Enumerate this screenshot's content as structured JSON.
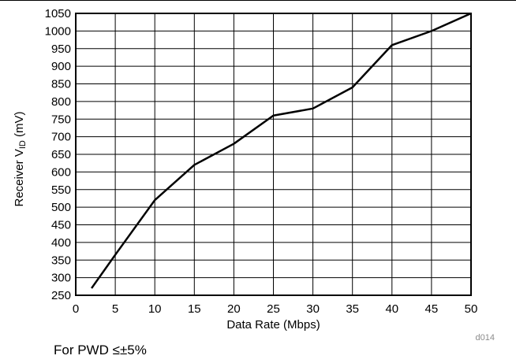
{
  "chart_data": {
    "type": "line",
    "title": "",
    "xlabel": "Data Rate (Mbps)",
    "ylabel_main": "Receiver V",
    "ylabel_sub": "ID",
    "ylabel_unit": " (mV)",
    "xlim": [
      0,
      50
    ],
    "ylim": [
      250,
      1050
    ],
    "xticks": [
      0,
      5,
      10,
      15,
      20,
      25,
      30,
      35,
      40,
      45,
      50
    ],
    "yticks": [
      250,
      300,
      350,
      400,
      450,
      500,
      550,
      600,
      650,
      700,
      750,
      800,
      850,
      900,
      950,
      1000,
      1050
    ],
    "grid": true,
    "series": [
      {
        "x": [
          2,
          5,
          10,
          15,
          20,
          25,
          30,
          35,
          40,
          45,
          50
        ],
        "y": [
          270,
          365,
          520,
          620,
          680,
          760,
          780,
          840,
          960,
          1000,
          1050
        ]
      }
    ],
    "line_color": "#000000",
    "grid_color": "#000000",
    "code_label": "d014"
  },
  "footnote": "For PWD ≤±5%"
}
